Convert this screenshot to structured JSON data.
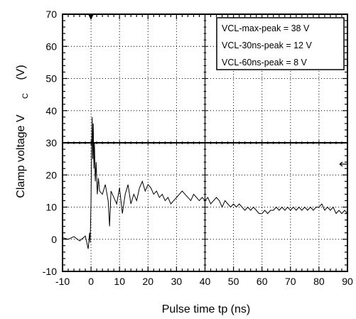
{
  "chart_data": {
    "type": "line",
    "title": "",
    "xlabel": "Pulse time    tp    (ns)",
    "ylabel": "Clamp voltage    V",
    "ylabel_sub": "C",
    "ylabel_unit": "(V)",
    "xlim": [
      -10,
      90
    ],
    "ylim": [
      -10,
      70
    ],
    "xticks": [
      -10,
      0,
      10,
      20,
      30,
      40,
      50,
      60,
      70,
      80,
      90
    ],
    "yticks": [
      -10,
      0,
      10,
      20,
      30,
      40,
      50,
      60,
      70
    ],
    "xtick_labels": [
      "-10",
      "0",
      "10",
      "20",
      "30",
      "40",
      "50",
      "60",
      "70",
      "80",
      "90"
    ],
    "ytick_labels": [
      "-10",
      "0",
      "10",
      "20",
      "30",
      "40",
      "50",
      "60",
      "70"
    ],
    "grid": "dotted",
    "reference_lines": {
      "horizontal_y": 30,
      "vertical_x": 40
    },
    "legend_position": "top-right",
    "annotations": [
      "VCL-max-peak = 38 V",
      "VCL-30ns-peak = 12 V",
      "VCL-60ns-peak = 8 V"
    ],
    "series": [
      {
        "x": [
          -10,
          -8,
          -6,
          -4,
          -2,
          -1,
          -0.5,
          -0.3,
          0,
          0.2,
          0.4,
          0.6,
          0.8,
          1.0,
          1.2,
          1.5,
          1.8,
          2.2,
          2.6,
          3,
          4,
          5,
          6,
          6.5,
          7,
          8,
          9,
          10,
          11,
          12,
          13,
          14,
          15,
          16,
          17,
          18,
          19,
          20,
          21,
          22,
          23,
          24,
          25,
          26,
          27,
          28,
          29,
          30,
          31,
          32,
          33,
          34,
          35,
          36,
          37,
          38,
          39,
          40,
          41,
          42,
          43,
          44,
          45,
          46,
          47,
          48,
          49,
          50,
          51,
          52,
          53,
          54,
          55,
          56,
          57,
          58,
          59,
          60,
          61,
          62,
          63,
          64,
          65,
          66,
          67,
          68,
          69,
          70,
          71,
          72,
          73,
          74,
          75,
          76,
          77,
          78,
          79,
          80,
          81,
          82,
          83,
          84,
          85,
          86,
          87,
          88,
          89,
          90
        ],
        "y": [
          0.5,
          0,
          0.8,
          -0.5,
          1.0,
          -3,
          2,
          -1,
          12,
          28,
          38,
          25,
          36,
          22,
          30,
          18,
          24,
          14,
          19,
          15,
          14,
          17,
          12,
          4,
          15,
          13,
          11,
          16,
          8,
          14,
          17,
          11,
          14,
          12,
          16,
          18,
          15,
          17,
          16,
          14,
          15,
          13,
          14,
          12,
          13,
          11,
          12,
          13,
          14,
          15,
          14,
          13,
          12,
          14,
          13,
          12,
          13,
          12,
          13,
          11,
          12,
          13,
          12,
          10,
          12,
          11,
          10,
          11,
          10,
          11,
          10,
          9,
          10,
          9,
          10,
          9,
          8,
          8,
          9,
          8,
          9,
          9,
          10,
          9,
          10,
          9,
          10,
          9,
          10,
          9,
          10,
          9,
          10,
          9,
          10,
          9,
          10,
          10,
          11,
          9,
          10,
          9,
          10,
          8,
          9,
          8,
          9,
          8
        ]
      }
    ]
  }
}
